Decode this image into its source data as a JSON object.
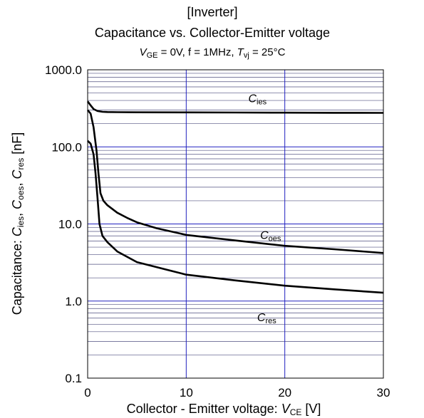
{
  "chart_data": {
    "type": "line",
    "title": "[Inverter]",
    "subtitle": "Capacitance vs. Collector-Emitter voltage",
    "conditions": {
      "vge_sym": "V",
      "vge_sub": "GE",
      "vge_val": " = 0V,  f = 1MHz,  ",
      "tvj_sym": "T",
      "tvj_sub": "vj",
      "tvj_val": " = 25°C"
    },
    "xlabel": {
      "text": "Collector - Emitter voltage:  ",
      "sym": "V",
      "sub": "CE",
      "unit": " [V]"
    },
    "ylabel": {
      "prefix": "Capacitance:  ",
      "s1": "C",
      "sub1": "ies",
      "sep1": ",  ",
      "s2": "C",
      "sub2": "oes",
      "sep2": ",  ",
      "s3": "C",
      "sub3": "res",
      "unit": " [nF]"
    },
    "x_scale": "linear",
    "y_scale": "log",
    "xlim": [
      0,
      30
    ],
    "ylim": [
      0.1,
      1000
    ],
    "x_ticks": [
      0,
      10,
      20,
      30
    ],
    "x_tick_labels": [
      "0",
      "10",
      "20",
      "30"
    ],
    "y_ticks": [
      0.1,
      1,
      10,
      100,
      1000
    ],
    "y_tick_labels": [
      "0.1",
      "1.0",
      "10.0",
      "100.0",
      "1000.0"
    ],
    "grid": true,
    "colors": {
      "grid_major": "#2020c0",
      "grid_minor": "#505080",
      "series": "#000000"
    },
    "series": [
      {
        "name": "C",
        "name_sub": "ies",
        "label_at": [
          16.3,
          380
        ],
        "x": [
          0,
          0.3,
          0.6,
          1.0,
          1.5,
          2,
          3,
          5,
          10,
          15,
          20,
          25,
          30
        ],
        "y": [
          390,
          345,
          310,
          292,
          285,
          283,
          282,
          281,
          280,
          279,
          278,
          277,
          276
        ]
      },
      {
        "name": "C",
        "name_sub": "oes",
        "label_at": [
          17.5,
          6.4
        ],
        "x": [
          0,
          0.3,
          0.6,
          0.9,
          1.1,
          1.3,
          1.6,
          2,
          3,
          4,
          5,
          7,
          10,
          15,
          20,
          25,
          30
        ],
        "y": [
          300,
          270,
          180,
          90,
          45,
          25,
          20,
          17.5,
          14,
          12,
          10.5,
          8.8,
          7.2,
          6.1,
          5.2,
          4.7,
          4.2
        ]
      },
      {
        "name": "C",
        "name_sub": "res",
        "label_at": [
          17.2,
          0.55
        ],
        "x": [
          0,
          0.3,
          0.6,
          0.8,
          1.0,
          1.2,
          1.5,
          2,
          3,
          5,
          10,
          15,
          20,
          25,
          30
        ],
        "y": [
          120,
          110,
          80,
          45,
          22,
          10,
          7,
          5.8,
          4.4,
          3.2,
          2.2,
          1.85,
          1.58,
          1.42,
          1.28
        ]
      }
    ]
  }
}
